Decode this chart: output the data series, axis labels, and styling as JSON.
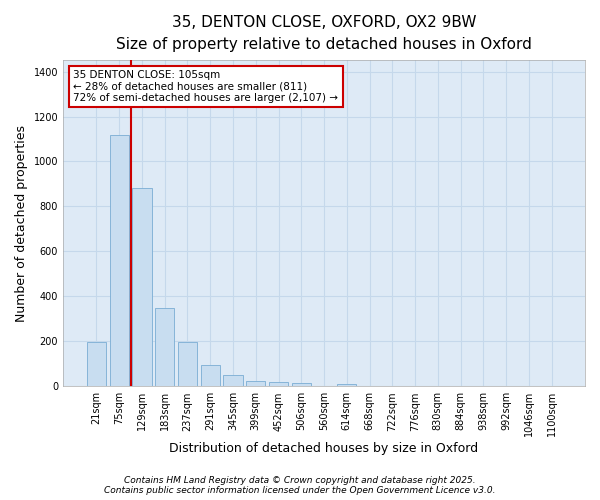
{
  "title1": "35, DENTON CLOSE, OXFORD, OX2 9BW",
  "title2": "Size of property relative to detached houses in Oxford",
  "xlabel": "Distribution of detached houses by size in Oxford",
  "ylabel": "Number of detached properties",
  "categories": [
    "21sqm",
    "75sqm",
    "129sqm",
    "183sqm",
    "237sqm",
    "291sqm",
    "345sqm",
    "399sqm",
    "452sqm",
    "506sqm",
    "560sqm",
    "614sqm",
    "668sqm",
    "722sqm",
    "776sqm",
    "830sqm",
    "884sqm",
    "938sqm",
    "992sqm",
    "1046sqm",
    "1100sqm"
  ],
  "values": [
    195,
    1120,
    880,
    350,
    195,
    95,
    50,
    22,
    18,
    15,
    0,
    12,
    0,
    0,
    0,
    0,
    0,
    0,
    0,
    0,
    0
  ],
  "bar_color": "#c8ddf0",
  "bar_edge_color": "#7aadd4",
  "grid_color": "#c5d8eb",
  "bg_color": "#deeaf6",
  "annotation_box_color": "#cc0000",
  "annotation_text": "35 DENTON CLOSE: 105sqm\n← 28% of detached houses are smaller (811)\n72% of semi-detached houses are larger (2,107) →",
  "vline_color": "#cc0000",
  "vline_x": 1.5,
  "ylim": [
    0,
    1450
  ],
  "yticks": [
    0,
    200,
    400,
    600,
    800,
    1000,
    1200,
    1400
  ],
  "footer1": "Contains HM Land Registry data © Crown copyright and database right 2025.",
  "footer2": "Contains public sector information licensed under the Open Government Licence v3.0.",
  "title_fontsize": 11,
  "subtitle_fontsize": 9.5,
  "tick_fontsize": 7,
  "label_fontsize": 9,
  "footer_fontsize": 6.5
}
